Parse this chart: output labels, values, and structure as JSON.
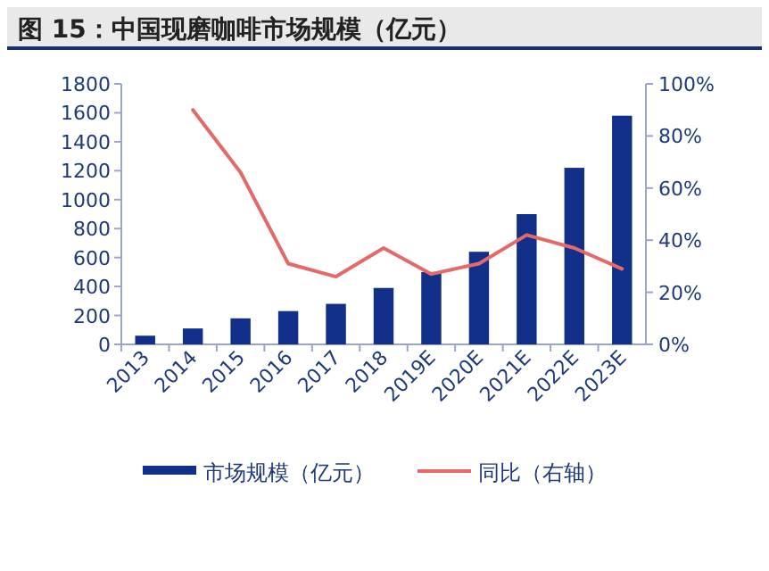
{
  "chart_data": {
    "type": "bar",
    "title": "图 15：中国现磨咖啡市场规模（亿元）",
    "categories": [
      "2013",
      "2014",
      "2015",
      "2016",
      "2017",
      "2018",
      "2019E",
      "2020E",
      "2021E",
      "2022E",
      "2023E"
    ],
    "series": [
      {
        "name": "市场规模（亿元）",
        "color": "#12308a",
        "values": [
          60,
          110,
          180,
          230,
          280,
          390,
          500,
          640,
          900,
          1220,
          1580
        ]
      },
      {
        "name": "同比（右轴）",
        "type": "line",
        "axis": "y2",
        "color": "#e46a6a",
        "values": [
          null,
          90,
          66,
          31,
          26,
          37,
          27,
          31,
          42,
          37,
          29
        ]
      }
    ],
    "ylim": [
      0,
      1800
    ],
    "yticks": [
      0,
      200,
      400,
      600,
      800,
      1000,
      1200,
      1400,
      1600,
      1800
    ],
    "y2lim": [
      0,
      100
    ],
    "y2ticks": [
      {
        "value": 0,
        "label": "0%"
      },
      {
        "value": 20,
        "label": "20%"
      },
      {
        "value": 40,
        "label": "40%"
      },
      {
        "value": 60,
        "label": "60%"
      },
      {
        "value": 80,
        "label": "80%"
      },
      {
        "value": 100,
        "label": "100%"
      }
    ],
    "legend": "bottom"
  }
}
